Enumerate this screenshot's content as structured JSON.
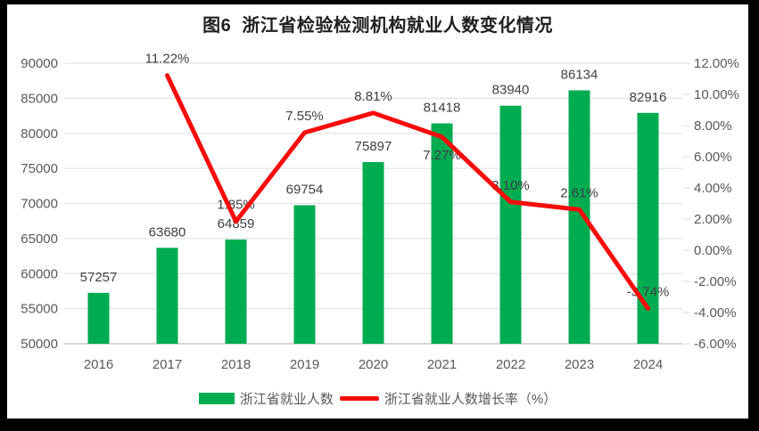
{
  "title": "图6  浙江省检验检测机构就业人数变化情况",
  "colors": {
    "bar": "#00AC50",
    "line": "#F90B0B",
    "grid": "#E4E4E4",
    "axis_line": "#C9C9C9",
    "tick_text": "#595959",
    "value_text": "#404040",
    "title_text": "#1F1F1F",
    "frame": "#000000",
    "canvas": "#FFFFFF"
  },
  "legend": [
    {
      "label": "浙江省就业人数",
      "swatch": "bar"
    },
    {
      "label": "浙江省就业人数增长率（%）",
      "swatch": "line"
    }
  ],
  "chart_data": {
    "type": "bar+line combo",
    "title": "图6  浙江省检验检测机构就业人数变化情况",
    "categories": [
      "2016",
      "2017",
      "2018",
      "2019",
      "2020",
      "2021",
      "2022",
      "2023",
      "2024"
    ],
    "series": [
      {
        "name": "浙江省就业人数",
        "type": "bar",
        "axis": "left",
        "values": [
          57257,
          63680,
          64859,
          69754,
          75897,
          81418,
          83940,
          86134,
          82916
        ],
        "data_labels": [
          "57257",
          "63680",
          "64859",
          "69754",
          "75897",
          "81418",
          "83940",
          "86134",
          "82916"
        ]
      },
      {
        "name": "浙江省就业人数增长率（%）",
        "type": "line",
        "axis": "right",
        "values": [
          null,
          11.22,
          1.85,
          7.55,
          8.81,
          7.27,
          3.1,
          2.61,
          -3.74
        ],
        "data_labels": [
          null,
          "11.22%",
          "1.85%",
          "7.55%",
          "8.81%",
          "7.27%",
          "3.10%",
          "2.61%",
          "-3.74%"
        ],
        "label_placement": [
          null,
          "above",
          "above",
          "above",
          "above",
          "below",
          "above",
          "above",
          "above"
        ]
      }
    ],
    "left_axis": {
      "min": 50000,
      "max": 90000,
      "step": 5000,
      "tick_labels": [
        "90000",
        "85000",
        "80000",
        "75000",
        "70000",
        "65000",
        "60000",
        "55000",
        "50000"
      ]
    },
    "right_axis": {
      "min": -6,
      "max": 12,
      "step": 2,
      "tick_labels": [
        "12.00%",
        "10.00%",
        "8.00%",
        "6.00%",
        "4.00%",
        "2.00%",
        "0.00%",
        "-2.00%",
        "-4.00%",
        "-6.00%"
      ]
    },
    "grid": "horizontal gridlines aligned to left axis",
    "legend_position": "bottom"
  }
}
